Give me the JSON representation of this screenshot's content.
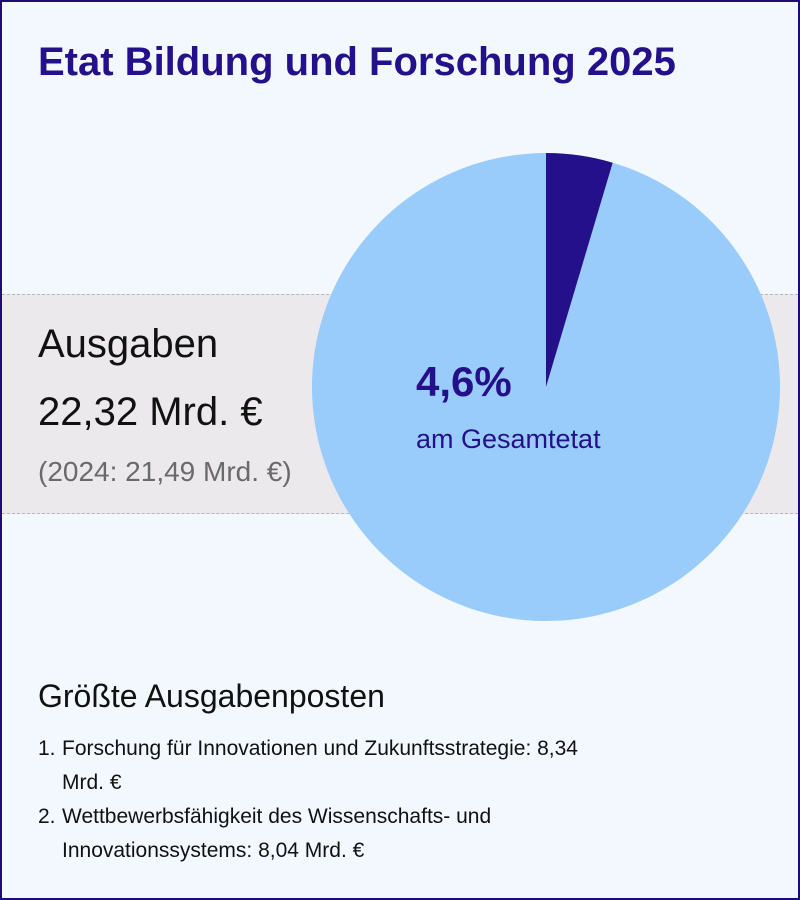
{
  "title": "Etat Bildung und Forschung 2025",
  "expenses": {
    "label": "Ausgaben",
    "value": "22,32 Mrd. €",
    "previous": "(2024: 21,49 Mrd. €)"
  },
  "chart_data": {
    "type": "pie",
    "slices": [
      {
        "label": "Etat Bildung und Forschung",
        "value": 4.6,
        "color": "#24108a"
      },
      {
        "label": "",
        "value": 95.4,
        "color": "#99ccfb"
      }
    ],
    "center_value": "4,6%",
    "center_label": "am Gesamtetat",
    "start_angle_deg": 0,
    "direction": "clockwise"
  },
  "top_items": {
    "heading": "Größte Ausgabenposten",
    "items": [
      {
        "num": "1.",
        "text": "Forschung für Innovationen und Zukunftsstrategie: 8,34 Mrd. €"
      },
      {
        "num": "2.",
        "text": "Wettbewerbsfähigkeit des Wissenschafts- und Innovationssystems: 8,04 Mrd. €"
      }
    ]
  }
}
